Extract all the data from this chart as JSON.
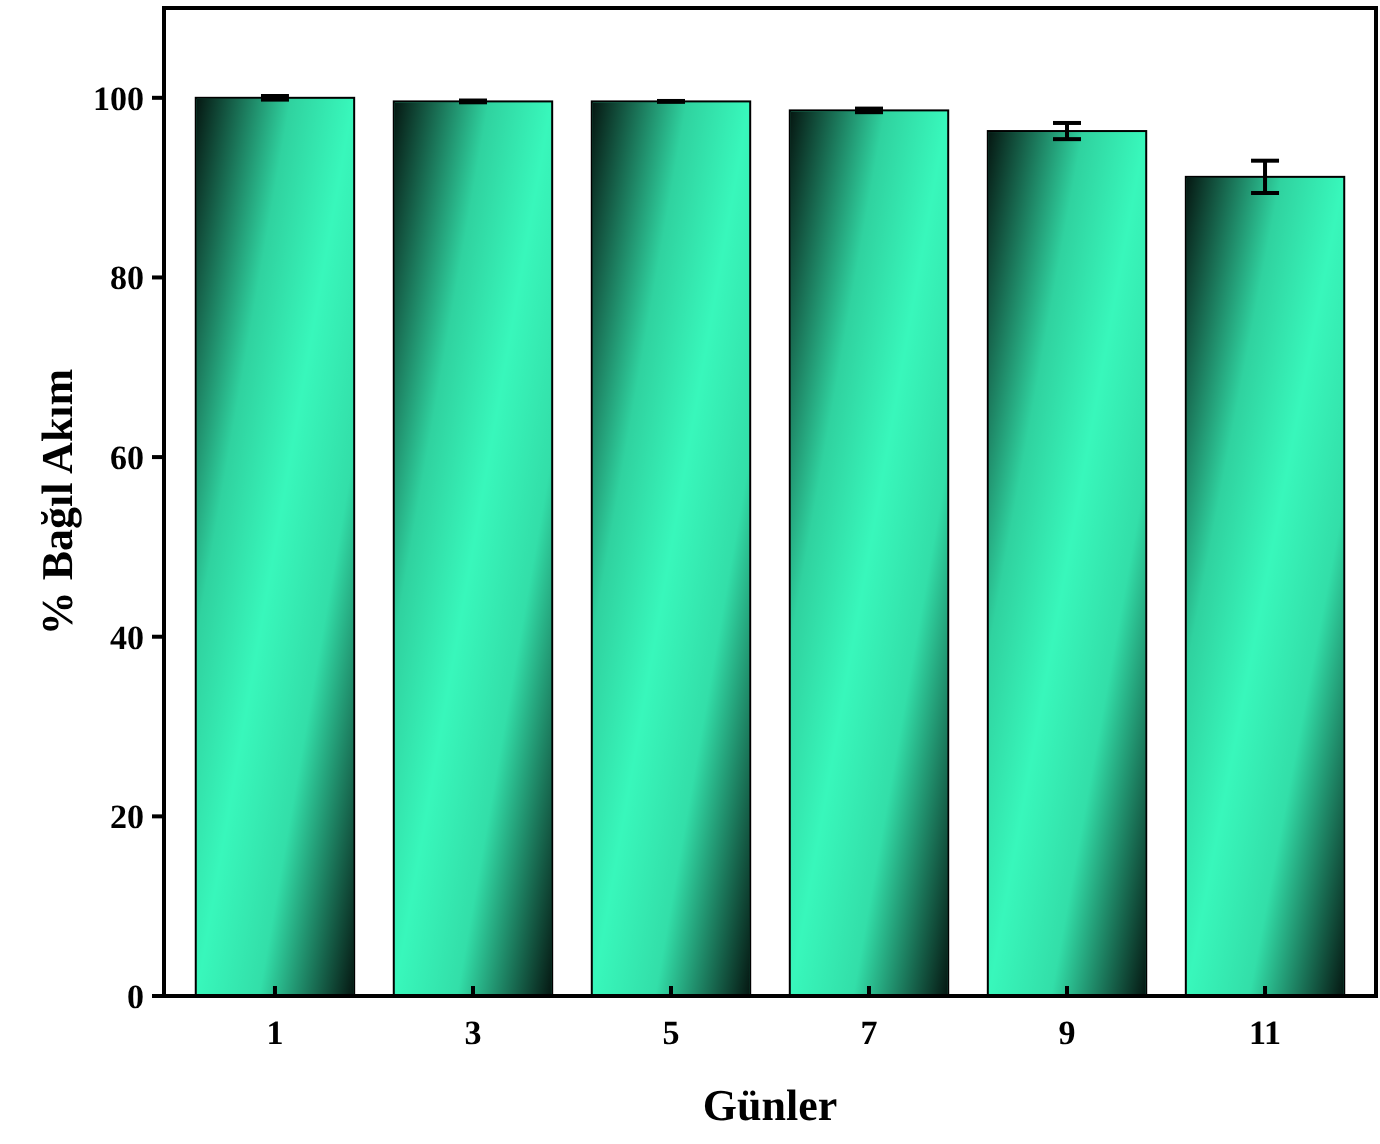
{
  "chart_data": {
    "type": "bar",
    "xlabel": "Günler",
    "ylabel": "% Bağıl Akım",
    "categories": [
      "1",
      "3",
      "5",
      "7",
      "9",
      "11"
    ],
    "values": [
      100.0,
      99.6,
      99.6,
      98.6,
      96.3,
      91.2
    ],
    "errors": [
      0.2,
      0.1,
      0.05,
      0.2,
      0.9,
      1.8
    ],
    "color": "#38f7bb",
    "ylim": [
      0,
      110
    ],
    "yticks": [
      0,
      20,
      40,
      60,
      80,
      100
    ],
    "grid": false
  }
}
